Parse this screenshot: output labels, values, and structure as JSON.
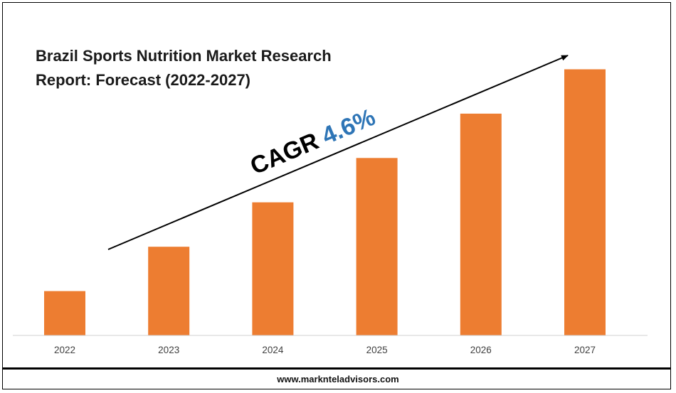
{
  "chart_data": {
    "type": "bar",
    "title_lines": [
      "Brazil Sports Nutrition Market Research",
      "Report: Forecast (2022-2027)"
    ],
    "categories": [
      "2022",
      "2023",
      "2024",
      "2025",
      "2026",
      "2027"
    ],
    "values": [
      1.0,
      2.0,
      3.0,
      4.0,
      5.0,
      6.0
    ],
    "ylim": [
      0,
      6.2
    ],
    "xlabel": "",
    "ylabel": "",
    "grid": false,
    "bar_color": "#ED7D31",
    "annotation": {
      "prefix": "CAGR",
      "value": "4.6%",
      "prefix_color": "#000000",
      "value_color": "#2E75B6"
    }
  },
  "footer": {
    "url": "www.marknteladvisors.com"
  }
}
